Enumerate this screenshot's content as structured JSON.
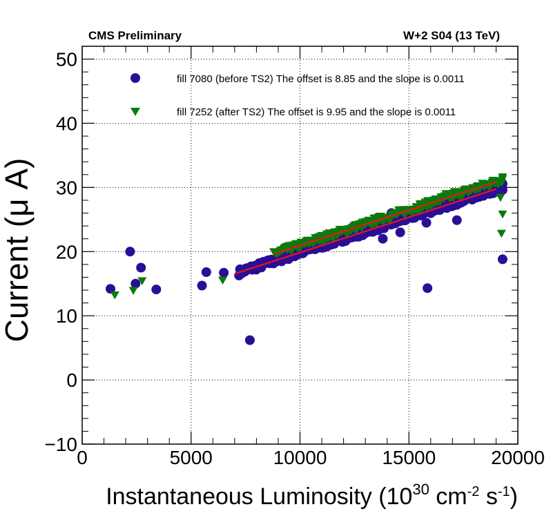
{
  "header": {
    "left": "CMS Preliminary",
    "right": "W+2 S04 (13 TeV)"
  },
  "chart_data": {
    "type": "scatter",
    "xlabel_main": "Instantaneous Luminosity (10",
    "xlabel_sup1": "30",
    "xlabel_mid": " cm",
    "xlabel_sup2": "-2",
    "xlabel_mid2": " s",
    "xlabel_sup3": "-1",
    "xlabel_end": ")",
    "ylabel": "Current (μ A)",
    "xlim": [
      0,
      20000
    ],
    "ylim": [
      -10,
      52
    ],
    "x_ticks": [
      0,
      5000,
      10000,
      15000,
      20000
    ],
    "y_ticks": [
      -10,
      0,
      10,
      20,
      30,
      40,
      50
    ],
    "x_tick_labels": [
      "0",
      "5000",
      "10000",
      "15000",
      "20000"
    ],
    "y_tick_labels": [
      "−10",
      "0",
      "10",
      "20",
      "30",
      "40",
      "50"
    ],
    "grid": true,
    "legend_position": "top",
    "fit_color": "#e8151c",
    "series": [
      {
        "name": "fill 7080 (before TS2) The offset is 8.85 and the slope is 0.0011",
        "marker": "circle",
        "color": "#2a0e96",
        "offset": 8.85,
        "slope": 0.0011,
        "band_range": [
          7200,
          19300
        ],
        "outliers": [
          [
            1300,
            14.2
          ],
          [
            2200,
            20.0
          ],
          [
            2450,
            15.0
          ],
          [
            2700,
            17.5
          ],
          [
            3400,
            14.1
          ],
          [
            5500,
            14.7
          ],
          [
            5700,
            16.8
          ],
          [
            6500,
            16.7
          ],
          [
            7700,
            6.2
          ],
          [
            13800,
            22.0
          ],
          [
            14600,
            23.0
          ],
          [
            15800,
            24.5
          ],
          [
            15850,
            14.3
          ],
          [
            17200,
            24.9
          ],
          [
            19300,
            18.8
          ],
          [
            19300,
            29.6
          ],
          [
            14200,
            26.0
          ]
        ]
      },
      {
        "name": "fill 7252 (after TS2) The offset is 9.95 and the slope is 0.0011",
        "marker": "triangle-down",
        "color": "#0b7a0b",
        "offset": 9.95,
        "slope": 0.0011,
        "band_range": [
          8800,
          19300
        ],
        "outliers": [
          [
            1500,
            13.2
          ],
          [
            2350,
            13.9
          ],
          [
            2750,
            15.4
          ],
          [
            6450,
            15.5
          ],
          [
            19200,
            28.4
          ],
          [
            19300,
            25.8
          ],
          [
            19250,
            22.8
          ],
          [
            19300,
            31.6
          ],
          [
            17100,
            29.3
          ],
          [
            16700,
            29.0
          ]
        ]
      }
    ]
  }
}
